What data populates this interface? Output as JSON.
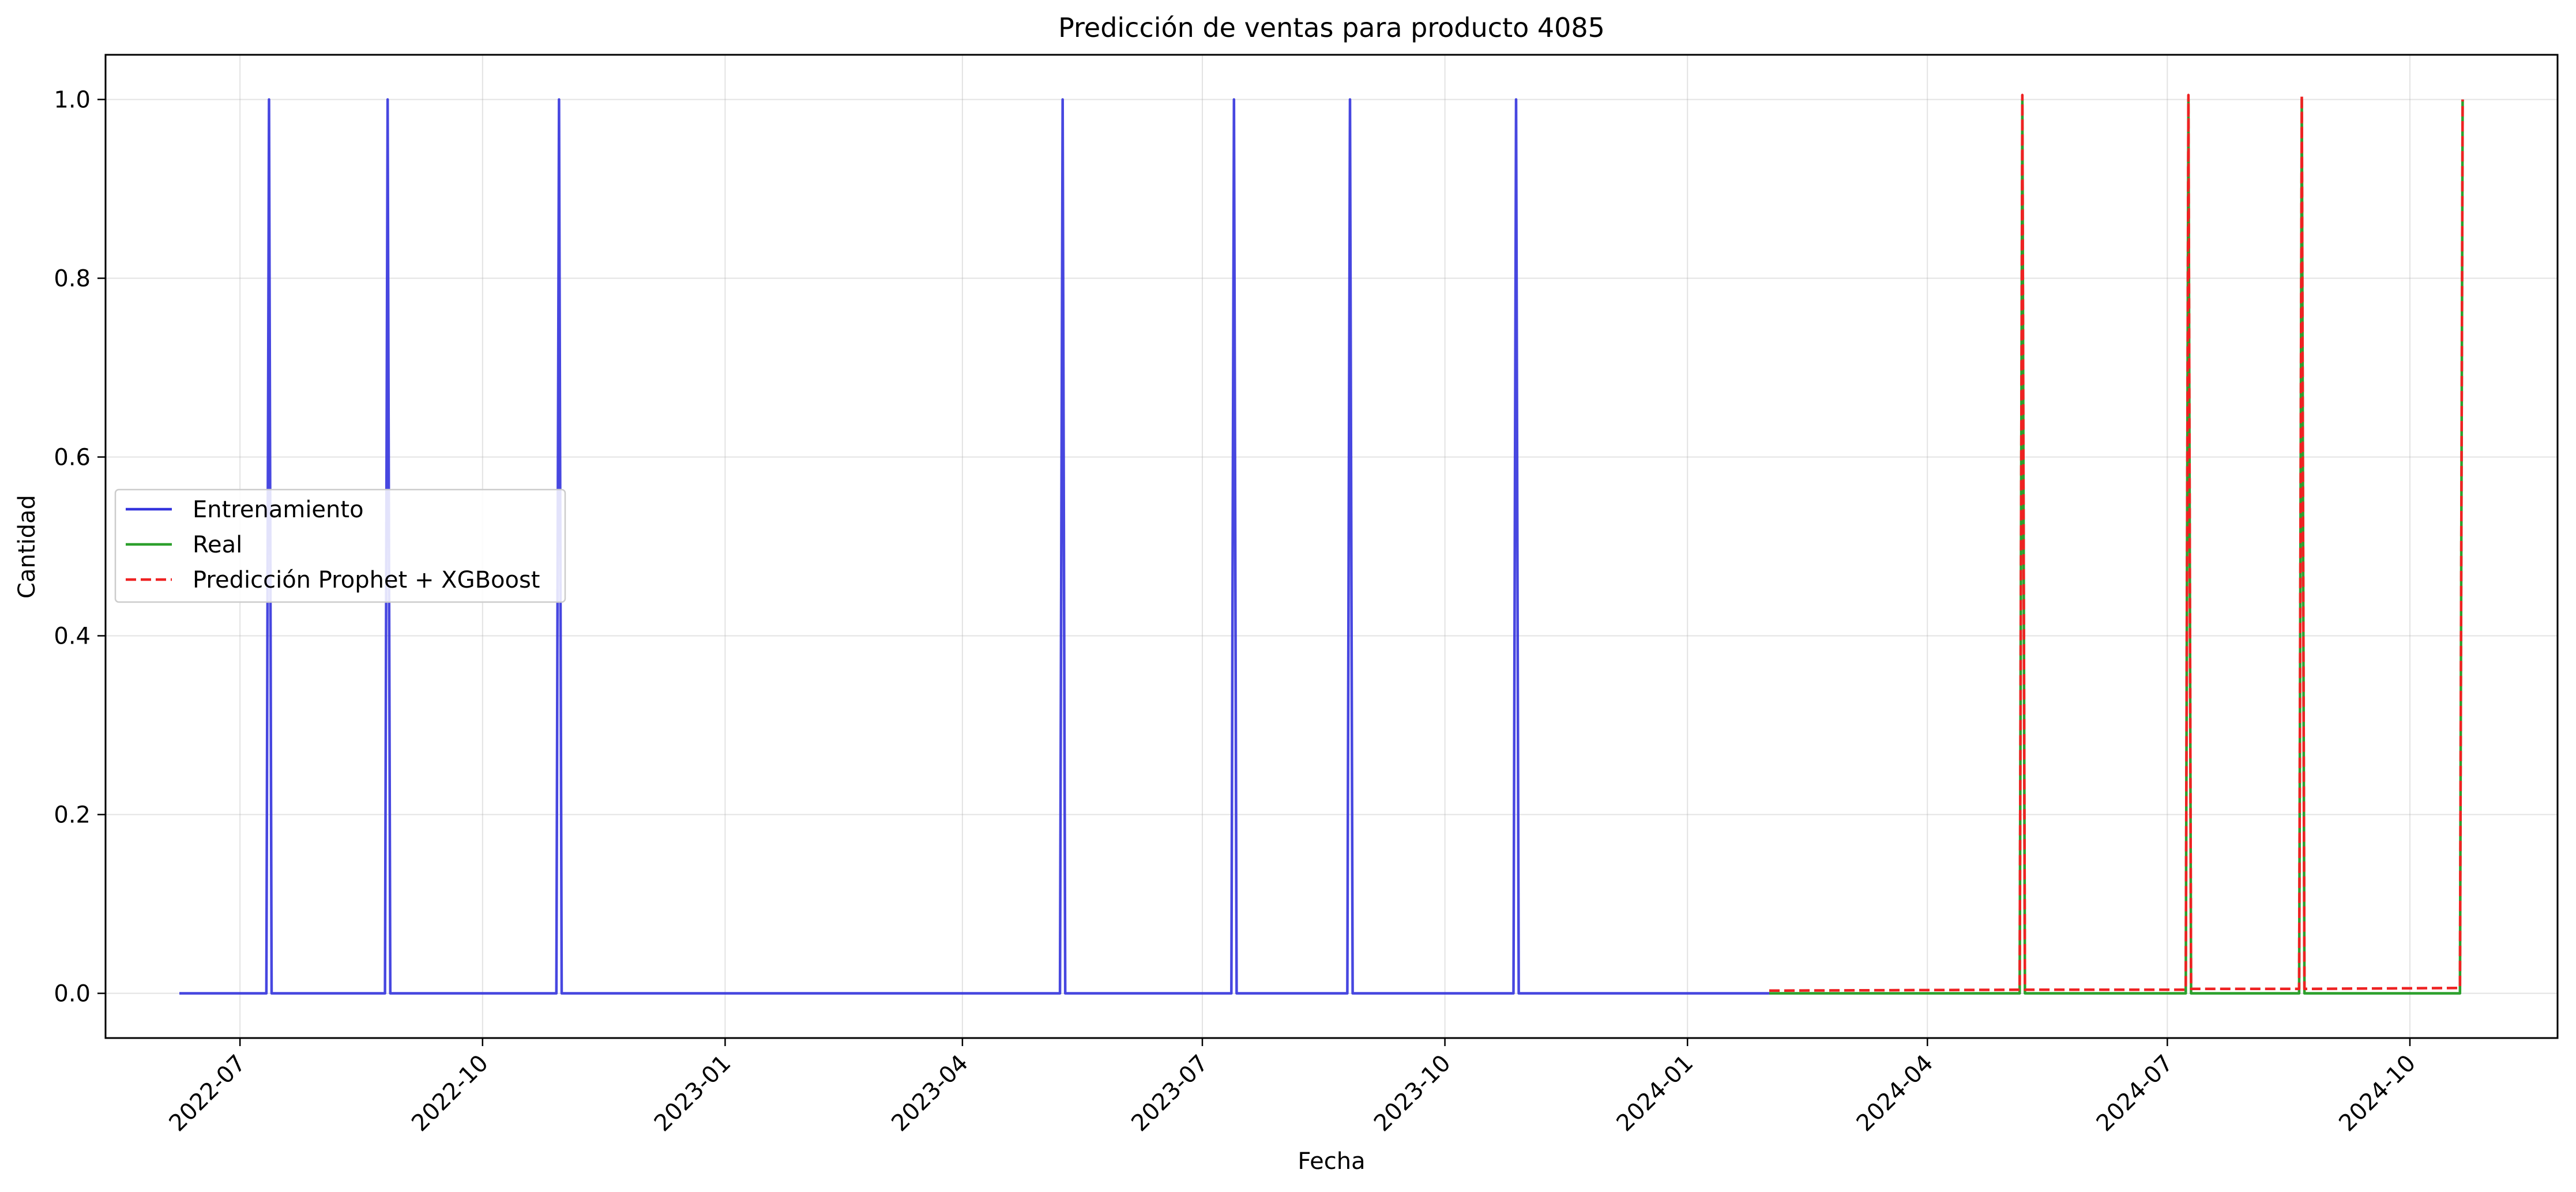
{
  "chart_data": {
    "type": "line",
    "title": "Predicción de ventas para producto 4085",
    "xlabel": "Fecha",
    "ylabel": "Cantidad",
    "xlim": [
      "2022-05-11",
      "2024-11-26"
    ],
    "ylim": [
      -0.05,
      1.05
    ],
    "x_ticks": [
      "2022-07-01",
      "2022-10-01",
      "2023-01-01",
      "2023-04-01",
      "2023-07-01",
      "2023-10-01",
      "2024-01-01",
      "2024-04-01",
      "2024-07-01",
      "2024-10-01"
    ],
    "x_tick_labels": [
      "2022-07",
      "2022-10",
      "2023-01",
      "2023-04",
      "2023-07",
      "2023-10",
      "2024-01",
      "2024-04",
      "2024-07",
      "2024-10"
    ],
    "y_ticks": [
      0.0,
      0.2,
      0.4,
      0.6,
      0.8,
      1.0
    ],
    "y_tick_labels": [
      "0.0",
      "0.2",
      "0.4",
      "0.6",
      "0.8",
      "1.0"
    ],
    "grid": true,
    "legend_position": "center-left",
    "series": [
      {
        "name": "Entrenamiento",
        "color": "#3333dd",
        "style": "solid",
        "x": [
          "2022-06-08",
          "2022-07-11",
          "2022-07-12",
          "2022-07-13",
          "2022-08-25",
          "2022-08-26",
          "2022-08-27",
          "2022-10-29",
          "2022-10-30",
          "2022-10-31",
          "2023-05-08",
          "2023-05-09",
          "2023-05-10",
          "2023-07-12",
          "2023-07-13",
          "2023-07-14",
          "2023-08-25",
          "2023-08-26",
          "2023-08-27",
          "2023-10-27",
          "2023-10-28",
          "2023-10-29",
          "2024-02-01"
        ],
        "y": [
          0,
          0,
          1,
          0,
          0,
          1,
          0,
          0,
          1,
          0,
          0,
          1,
          0,
          0,
          1,
          0,
          0,
          1,
          0,
          0,
          1,
          0,
          0
        ]
      },
      {
        "name": "Real",
        "color": "#2ca02c",
        "style": "solid",
        "x": [
          "2024-02-01",
          "2024-05-06",
          "2024-05-07",
          "2024-05-08",
          "2024-07-08",
          "2024-07-09",
          "2024-07-10",
          "2024-08-20",
          "2024-08-21",
          "2024-08-22",
          "2024-10-20",
          "2024-10-21"
        ],
        "y": [
          0,
          0,
          1,
          0,
          0,
          1,
          0,
          0,
          1,
          0,
          0,
          1
        ]
      },
      {
        "name": "Predicción Prophet + XGBoost",
        "color": "#ee2222",
        "style": "dashed",
        "x": [
          "2024-02-01",
          "2024-05-06",
          "2024-05-07",
          "2024-05-08",
          "2024-07-08",
          "2024-07-09",
          "2024-07-10",
          "2024-08-20",
          "2024-08-21",
          "2024-08-22",
          "2024-10-20",
          "2024-10-21"
        ],
        "y": [
          0.003,
          0.004,
          1.005,
          0.004,
          0.004,
          1.005,
          0.005,
          0.005,
          1.005,
          0.005,
          0.006,
          1.0
        ]
      }
    ]
  }
}
